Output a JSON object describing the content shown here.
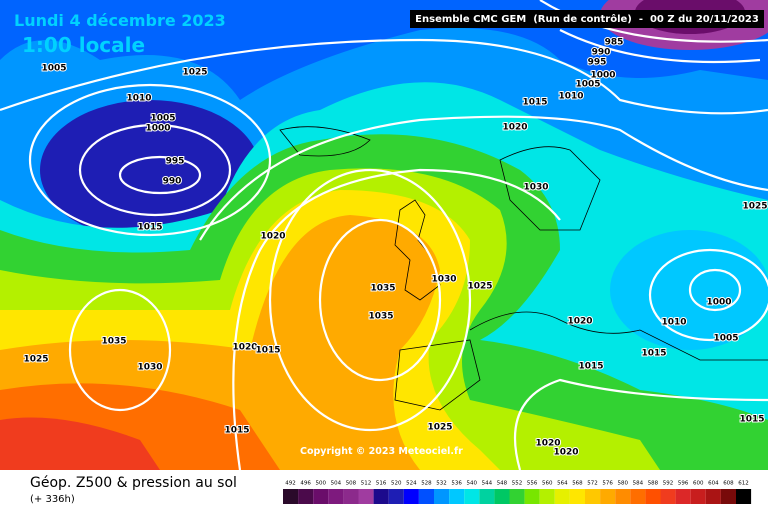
{
  "header": {
    "date": "Lundi 4 décembre 2023",
    "time": "1:00 locale",
    "model": "Ensemble CMC GEM  (Run de contrôle)  -  00 Z du 20/11/2023"
  },
  "isobar_labels": [
    "985",
    "990",
    "995",
    "1000",
    "1005",
    "1010",
    "1015",
    "1020",
    "1030",
    "1025",
    "1030",
    "1025",
    "1035",
    "1035",
    "1020",
    "1010",
    "1000",
    "1005",
    "1015",
    "1015",
    "1005",
    "1010",
    "1025",
    "1005",
    "1000",
    "995",
    "990",
    "1015",
    "1020",
    "1020",
    "1015",
    "1035",
    "1030",
    "1025",
    "1015",
    "1025",
    "1020",
    "1020",
    "1015"
  ],
  "copyright": "Copyright © 2023 Meteociel.fr",
  "caption": {
    "title": "Géop. Z500 & pression au sol",
    "subtitle": "(+ 336h)"
  },
  "colorbar": {
    "values": [
      492,
      496,
      500,
      504,
      508,
      512,
      516,
      520,
      524,
      528,
      532,
      536,
      540,
      544,
      548,
      552,
      556,
      560,
      564,
      568,
      572,
      576,
      580,
      584,
      588,
      592,
      596,
      600,
      604,
      608,
      612
    ],
    "colors": [
      "#2a0a2a",
      "#4b0a4b",
      "#6a0d6a",
      "#7e1a7e",
      "#8c2a8c",
      "#a03ca0",
      "#1c0a8c",
      "#1e1eb4",
      "#0000ff",
      "#0050ff",
      "#0096ff",
      "#00c8ff",
      "#00e6e6",
      "#00d2a0",
      "#00c864",
      "#32d232",
      "#78e600",
      "#b4f000",
      "#e6f000",
      "#ffe600",
      "#ffc800",
      "#ffaa00",
      "#ff8c00",
      "#ff6e00",
      "#ff5000",
      "#f03c1e",
      "#dc2828",
      "#c81e1e",
      "#aa1414",
      "#780a0a",
      "#000000"
    ]
  }
}
